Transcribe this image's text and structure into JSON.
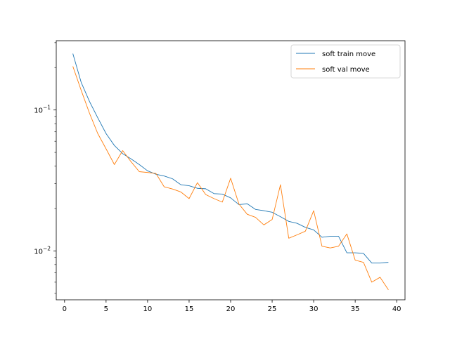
{
  "chart_data": {
    "type": "line",
    "title": "",
    "xlabel": "",
    "ylabel": "",
    "yscale": "log",
    "xlim": [
      -1,
      41
    ],
    "ylim": [
      0.0045,
      0.31
    ],
    "grid": false,
    "legend_position": "top-right",
    "x_ticks": [
      0,
      5,
      10,
      15,
      20,
      25,
      30,
      35,
      40
    ],
    "x_tick_labels": [
      "0",
      "5",
      "10",
      "15",
      "20",
      "25",
      "30",
      "35",
      "40"
    ],
    "y_major_ticks": [
      0.01,
      0.1
    ],
    "y_major_tick_bases": [
      "10",
      "10"
    ],
    "y_major_tick_exps": [
      "−2",
      "−1"
    ],
    "x": [
      1,
      2,
      3,
      4,
      5,
      6,
      7,
      8,
      9,
      10,
      11,
      12,
      13,
      14,
      15,
      16,
      17,
      18,
      19,
      20,
      21,
      22,
      23,
      24,
      25,
      26,
      27,
      28,
      29,
      30,
      31,
      32,
      33,
      34,
      35,
      36,
      37,
      38,
      39
    ],
    "series": [
      {
        "name": "soft train move",
        "color": "#1f77b4",
        "values": [
          0.251,
          0.157,
          0.115,
          0.088,
          0.068,
          0.056,
          0.049,
          0.045,
          0.041,
          0.037,
          0.035,
          0.034,
          0.0325,
          0.0295,
          0.029,
          0.0278,
          0.0276,
          0.0255,
          0.0253,
          0.0238,
          0.0213,
          0.0216,
          0.0197,
          0.0193,
          0.0188,
          0.0175,
          0.0162,
          0.0157,
          0.0147,
          0.0141,
          0.0125,
          0.0127,
          0.0127,
          0.0097,
          0.0097,
          0.0096,
          0.0082,
          0.0082,
          0.0083
        ]
      },
      {
        "name": "soft val move",
        "color": "#ff7f0e",
        "values": [
          0.204,
          0.138,
          0.095,
          0.068,
          0.053,
          0.041,
          0.0515,
          0.043,
          0.0365,
          0.036,
          0.0355,
          0.0285,
          0.0275,
          0.0262,
          0.0235,
          0.0305,
          0.0251,
          0.0235,
          0.0222,
          0.0328,
          0.0215,
          0.0182,
          0.0173,
          0.0153,
          0.0167,
          0.0295,
          0.0123,
          0.013,
          0.0138,
          0.0193,
          0.0108,
          0.0105,
          0.0108,
          0.0132,
          0.0086,
          0.0083,
          0.006,
          0.0065,
          0.0053
        ]
      }
    ]
  }
}
